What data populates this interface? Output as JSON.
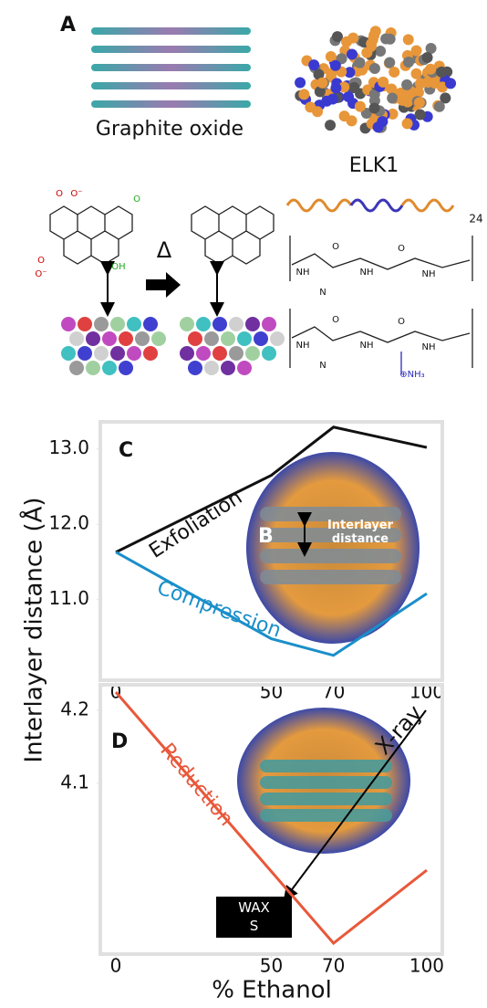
{
  "figure": {
    "panel_a": "A",
    "panel_b": "B",
    "panel_c": "C",
    "panel_d": "D",
    "graphite_oxide": "Graphite oxide",
    "elk1": "ELK1",
    "delta": "Δ",
    "repeat": "24",
    "chem_labels": [
      "O",
      "O⁻",
      "O",
      "O⁻",
      "O",
      "OH",
      "NH",
      "N",
      "NH",
      "NH",
      "O",
      "O",
      "NH",
      "N",
      "NH",
      "NH",
      "O",
      "O",
      "⊕NH₃"
    ],
    "inset_text": "Interlayer distance",
    "y_label": "Interlayer distance (Å)",
    "x_label": "% Ethanol"
  },
  "chart_data": [
    {
      "type": "line",
      "x": [
        0,
        50,
        70,
        100
      ],
      "xlim": [
        -5,
        105
      ],
      "xticks": [
        0,
        50,
        70,
        100
      ],
      "ylim": [
        9.93,
        13.36
      ],
      "yticks": [
        {
          "value": 11,
          "label": "11.0"
        },
        {
          "value": 12,
          "label": "12.0"
        },
        {
          "value": 13,
          "label": "13.0"
        }
      ],
      "series": [
        {
          "name": "Exfoliation",
          "color": "#111111",
          "values": [
            11.63,
            12.65,
            13.29,
            13.02
          ]
        },
        {
          "name": "Compression",
          "color": "#1a8fc9",
          "values": [
            11.63,
            10.48,
            10.26,
            11.08
          ]
        }
      ]
    },
    {
      "type": "line",
      "x": [
        0,
        70,
        100
      ],
      "xlim": [
        -5,
        105
      ],
      "xticks": [
        0,
        50,
        70,
        100
      ],
      "ylim": [
        3.866,
        4.235
      ],
      "yticks": [
        {
          "value": 4.1,
          "label": "4.1"
        },
        {
          "value": 4.2,
          "label": "4.2"
        }
      ],
      "series": [
        {
          "name": "Reduction",
          "color": "#e8583a",
          "values": [
            4.225,
            3.881,
            3.981
          ]
        }
      ],
      "annotations": [
        "X-ray",
        "WAXS"
      ]
    }
  ]
}
